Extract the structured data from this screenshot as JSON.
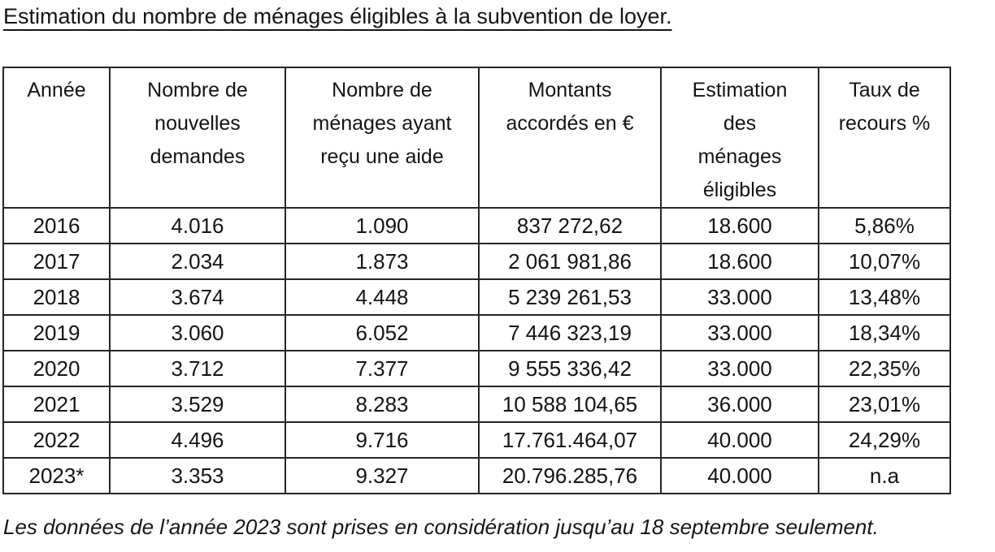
{
  "title": "Estimation du nombre de ménages éligibles à la subvention de loyer.",
  "colors": {
    "background": "#ffffff",
    "text": "#141414",
    "border": "#262626"
  },
  "table": {
    "columns": [
      {
        "label": "Année",
        "lines": [
          "Année"
        ]
      },
      {
        "label": "Nombre de nouvelles demandes",
        "lines": [
          "Nombre de",
          "nouvelles",
          "demandes"
        ]
      },
      {
        "label": "Nombre de ménages ayant reçu une aide",
        "lines": [
          "Nombre de",
          "ménages ayant",
          "reçu une aide"
        ]
      },
      {
        "label": "Montants accordés en €",
        "lines": [
          "Montants",
          "accordés en €"
        ]
      },
      {
        "label": "Estimation des ménages éligibles",
        "lines": [
          "Estimation",
          "des",
          "ménages",
          "éligibles"
        ]
      },
      {
        "label": "Taux de recours %",
        "lines": [
          "Taux de",
          "recours %"
        ]
      }
    ],
    "rows": [
      [
        "2016",
        "4.016",
        "1.090",
        "837 272,62",
        "18.600",
        "5,86%"
      ],
      [
        "2017",
        "2.034",
        "1.873",
        "2 061 981,86",
        "18.600",
        "10,07%"
      ],
      [
        "2018",
        "3.674",
        "4.448",
        "5 239 261,53",
        "33.000",
        "13,48%"
      ],
      [
        "2019",
        "3.060",
        "6.052",
        "7 446 323,19",
        "33.000",
        "18,34%"
      ],
      [
        "2020",
        "3.712",
        "7.377",
        "9 555 336,42",
        "33.000",
        "22,35%"
      ],
      [
        "2021",
        "3.529",
        "8.283",
        "10 588 104,65",
        "36.000",
        "23,01%"
      ],
      [
        "2022",
        "4.496",
        "9.716",
        "17.761.464,07",
        "40.000",
        "24,29%"
      ],
      [
        "2023*",
        "3.353",
        "9.327",
        "20.796.285,76",
        "40.000",
        "n.a"
      ]
    ]
  },
  "footnote": "Les données de l’année 2023 sont prises en considération jusqu’au 18 septembre seulement."
}
